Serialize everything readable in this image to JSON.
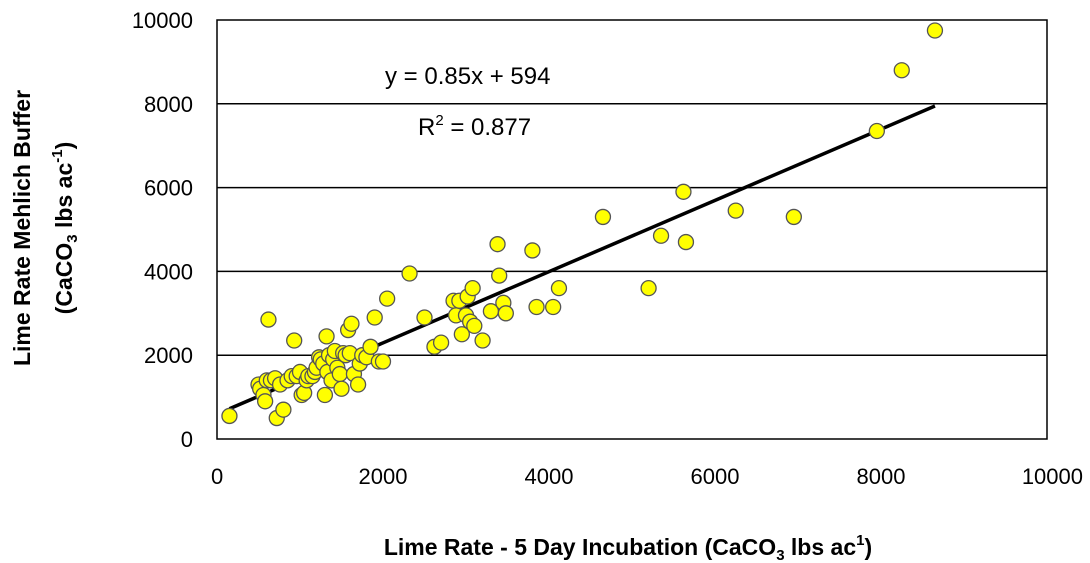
{
  "chart_data": {
    "type": "scatter",
    "xlabel": {
      "prefix": "Lime Rate - 5 Day Incubation (CaCO",
      "sub": "3",
      "mid": " lbs ac",
      "sup": "1",
      "suffix": ")"
    },
    "ylabel": {
      "line1": "Lime Rate Mehlich Buffer",
      "line2": {
        "prefix": "(CaCO",
        "sub": "3",
        "mid": " lbs ac",
        "sup": "-1",
        "suffix": ")"
      }
    },
    "xlim": [
      0,
      10000
    ],
    "ylim": [
      0,
      10000
    ],
    "xticks": [
      0,
      2000,
      4000,
      6000,
      8000,
      10000
    ],
    "yticks": [
      0,
      2000,
      4000,
      6000,
      8000,
      10000
    ],
    "xtick_labels": [
      "0",
      "2000",
      "4000",
      "6000",
      "8000",
      "10000"
    ],
    "ytick_labels": [
      "0",
      "2000",
      "4000",
      "6000",
      "8000",
      "10000"
    ],
    "grid": "horizontal",
    "trendline": {
      "slope": 0.85,
      "intercept": 594,
      "x_range": [
        150,
        8650
      ]
    },
    "annotations": {
      "equation": "y = 0.85x + 594",
      "r2_prefix": "R",
      "r2_sup": "2",
      "r2_suffix": " = 0.877"
    },
    "colors": {
      "marker_fill": "#ffff00",
      "marker_edge": "#555555",
      "trendline": "#000000",
      "grid": "#000000"
    },
    "points": [
      [
        150,
        550
      ],
      [
        500,
        1300
      ],
      [
        520,
        1200
      ],
      [
        560,
        1050
      ],
      [
        580,
        900
      ],
      [
        600,
        1400
      ],
      [
        620,
        2850
      ],
      [
        650,
        1400
      ],
      [
        700,
        1450
      ],
      [
        720,
        500
      ],
      [
        760,
        1300
      ],
      [
        800,
        700
      ],
      [
        850,
        1400
      ],
      [
        900,
        1500
      ],
      [
        930,
        2350
      ],
      [
        960,
        1500
      ],
      [
        1000,
        1600
      ],
      [
        1020,
        1050
      ],
      [
        1050,
        1100
      ],
      [
        1080,
        1400
      ],
      [
        1100,
        1500
      ],
      [
        1150,
        1500
      ],
      [
        1180,
        1600
      ],
      [
        1200,
        1700
      ],
      [
        1230,
        1950
      ],
      [
        1250,
        1900
      ],
      [
        1280,
        1800
      ],
      [
        1300,
        1050
      ],
      [
        1320,
        2450
      ],
      [
        1330,
        1600
      ],
      [
        1350,
        2000
      ],
      [
        1380,
        1400
      ],
      [
        1400,
        1900
      ],
      [
        1420,
        2100
      ],
      [
        1450,
        1700
      ],
      [
        1480,
        1550
      ],
      [
        1500,
        1200
      ],
      [
        1520,
        2050
      ],
      [
        1550,
        2000
      ],
      [
        1580,
        2600
      ],
      [
        1600,
        2050
      ],
      [
        1620,
        2750
      ],
      [
        1650,
        1550
      ],
      [
        1700,
        1300
      ],
      [
        1720,
        1800
      ],
      [
        1750,
        2000
      ],
      [
        1800,
        1950
      ],
      [
        1850,
        2200
      ],
      [
        1900,
        2900
      ],
      [
        1950,
        1850
      ],
      [
        2000,
        1850
      ],
      [
        2050,
        3350
      ],
      [
        2320,
        3950
      ],
      [
        2500,
        2900
      ],
      [
        2620,
        2200
      ],
      [
        2700,
        2300
      ],
      [
        2850,
        3300
      ],
      [
        2880,
        2950
      ],
      [
        2920,
        3300
      ],
      [
        2950,
        2500
      ],
      [
        3000,
        2950
      ],
      [
        3020,
        3400
      ],
      [
        3050,
        2800
      ],
      [
        3080,
        3600
      ],
      [
        3100,
        2700
      ],
      [
        3200,
        2350
      ],
      [
        3300,
        3050
      ],
      [
        3380,
        4650
      ],
      [
        3400,
        3900
      ],
      [
        3450,
        3250
      ],
      [
        3480,
        3000
      ],
      [
        3800,
        4500
      ],
      [
        3850,
        3150
      ],
      [
        4050,
        3150
      ],
      [
        4120,
        3600
      ],
      [
        4650,
        5300
      ],
      [
        5200,
        3600
      ],
      [
        5350,
        4850
      ],
      [
        5620,
        5900
      ],
      [
        5650,
        4700
      ],
      [
        6250,
        5450
      ],
      [
        6950,
        5300
      ],
      [
        7950,
        7350
      ],
      [
        8250,
        8800
      ],
      [
        8650,
        9750
      ]
    ]
  }
}
